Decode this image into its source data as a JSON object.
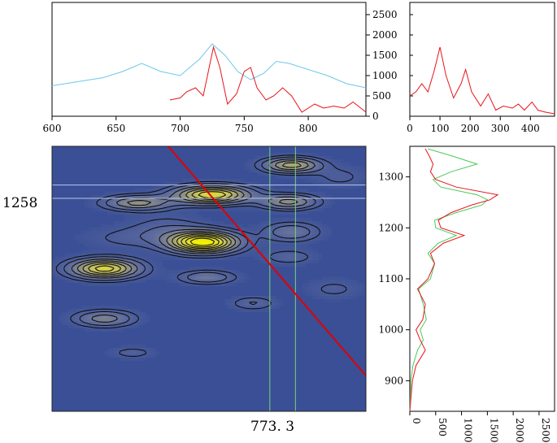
{
  "chart_data": {
    "type": "contour",
    "title": "",
    "cursor_labels": {
      "x": "773. 3",
      "y": "1258"
    },
    "colors": {
      "spectrum_blue": "#6cc8e8",
      "spectrum_red": "#e8141a",
      "trace_green": "#4cc85a",
      "map_background": "#3a4f96",
      "contour_line": "#111111",
      "cursor_line": "#7ad27a",
      "diagonal": "#e00000",
      "peak_yellow": "#f4f000"
    },
    "top_panel": {
      "xlim": [
        600,
        845
      ],
      "ylim": [
        0,
        2800
      ],
      "x_ticks": [
        "600",
        "650",
        "700",
        "750",
        "800"
      ],
      "y_ticks": [
        "0",
        "500",
        "1000",
        "1500",
        "2000",
        "2500"
      ],
      "series": [
        {
          "name": "blue spectrum",
          "x": [
            600,
            620,
            640,
            655,
            670,
            685,
            700,
            715,
            725,
            735,
            745,
            755,
            765,
            775,
            785,
            800,
            815,
            830,
            845
          ],
          "y": [
            750,
            850,
            950,
            1100,
            1300,
            1100,
            1000,
            1400,
            1780,
            1500,
            1100,
            900,
            1050,
            1350,
            1300,
            1150,
            1000,
            800,
            700
          ]
        },
        {
          "name": "red spectrum",
          "x": [
            692,
            700,
            705,
            712,
            718,
            722,
            726,
            731,
            737,
            744,
            750,
            755,
            760,
            767,
            773,
            780,
            787,
            795,
            805,
            812,
            820,
            828,
            835,
            845
          ],
          "y": [
            400,
            450,
            600,
            700,
            500,
            1100,
            1700,
            1200,
            300,
            550,
            1100,
            1200,
            700,
            400,
            500,
            700,
            500,
            100,
            300,
            200,
            250,
            200,
            350,
            100
          ]
        }
      ]
    },
    "side_top_panel": {
      "xlim": [
        0,
        480
      ],
      "ylim": [
        0,
        2800
      ],
      "x_ticks": [
        "0",
        "100",
        "200",
        "300",
        "400"
      ],
      "series": [
        {
          "name": "red spectrum",
          "x": [
            0,
            20,
            40,
            60,
            80,
            100,
            120,
            145,
            170,
            185,
            205,
            235,
            260,
            285,
            310,
            340,
            360,
            380,
            405,
            425,
            450,
            480
          ],
          "y": [
            500,
            600,
            800,
            600,
            1100,
            1700,
            1000,
            450,
            800,
            1150,
            600,
            250,
            550,
            150,
            250,
            200,
            300,
            150,
            350,
            150,
            100,
            60
          ]
        }
      ]
    },
    "right_panel": {
      "xlim": [
        0,
        2800
      ],
      "ylim": [
        840,
        1360
      ],
      "x_ticks": [
        "0",
        "500",
        "1000",
        "1500",
        "2000",
        "2500"
      ],
      "y_ticks": [
        "900",
        "1000",
        "1100",
        "1200",
        "1300"
      ],
      "series": [
        {
          "name": "green trace",
          "y": [
            840,
            900,
            930,
            960,
            980,
            1000,
            1020,
            1050,
            1080,
            1100,
            1130,
            1150,
            1170,
            1185,
            1200,
            1215,
            1230,
            1245,
            1255,
            1265,
            1280,
            1295,
            1310,
            1325,
            1340,
            1355
          ],
          "x": [
            0,
            20,
            60,
            150,
            260,
            200,
            320,
            260,
            170,
            400,
            480,
            350,
            550,
            900,
            500,
            480,
            900,
            1400,
            1500,
            1300,
            600,
            450,
            800,
            1300,
            850,
            350
          ]
        },
        {
          "name": "red trace",
          "y": [
            840,
            900,
            930,
            960,
            980,
            1000,
            1020,
            1050,
            1080,
            1100,
            1130,
            1150,
            1170,
            1185,
            1200,
            1215,
            1230,
            1245,
            1255,
            1265,
            1280,
            1295,
            1310,
            1325,
            1340,
            1355
          ],
          "x": [
            0,
            50,
            120,
            300,
            200,
            120,
            250,
            300,
            150,
            350,
            480,
            400,
            650,
            1050,
            600,
            550,
            800,
            1200,
            1550,
            1700,
            900,
            500,
            400,
            450,
            380,
            300
          ]
        }
      ]
    },
    "contour_map": {
      "xlim": [
        600,
        845
      ],
      "ylim": [
        840,
        1360
      ],
      "cursor_x": [
        770,
        790
      ],
      "cursor_y": [
        1258,
        1284
      ],
      "diagonal": [
        [
          690,
          1362
        ],
        [
          845,
          910
        ]
      ],
      "peaks": [
        {
          "x": 718,
          "y": 1172,
          "amp": 2400,
          "sx": 18,
          "sy": 14
        },
        {
          "x": 641,
          "y": 1120,
          "amp": 1800,
          "sx": 18,
          "sy": 13
        },
        {
          "x": 725,
          "y": 1265,
          "amp": 1900,
          "sx": 20,
          "sy": 12
        },
        {
          "x": 787,
          "y": 1323,
          "amp": 1300,
          "sx": 15,
          "sy": 10
        },
        {
          "x": 667,
          "y": 1249,
          "amp": 1000,
          "sx": 18,
          "sy": 10
        },
        {
          "x": 785,
          "y": 1251,
          "amp": 1000,
          "sx": 15,
          "sy": 10
        },
        {
          "x": 641,
          "y": 1022,
          "amp": 800,
          "sx": 16,
          "sy": 11
        },
        {
          "x": 721,
          "y": 1103,
          "amp": 650,
          "sx": 15,
          "sy": 9
        },
        {
          "x": 787,
          "y": 1192,
          "amp": 600,
          "sx": 15,
          "sy": 13
        },
        {
          "x": 757,
          "y": 1052,
          "amp": 400,
          "sx": 12,
          "sy": 9
        },
        {
          "x": 785,
          "y": 1143,
          "amp": 350,
          "sx": 14,
          "sy": 10
        },
        {
          "x": 663,
          "y": 955,
          "amp": 300,
          "sx": 12,
          "sy": 8
        },
        {
          "x": 820,
          "y": 1080,
          "amp": 250,
          "sx": 15,
          "sy": 14
        },
        {
          "x": 690,
          "y": 1200,
          "amp": 300,
          "sx": 20,
          "sy": 18
        },
        {
          "x": 660,
          "y": 1180,
          "amp": 250,
          "sx": 25,
          "sy": 15
        },
        {
          "x": 825,
          "y": 1300,
          "amp": 250,
          "sx": 15,
          "sy": 15
        }
      ],
      "levels": [
        200,
        380,
        650,
        900,
        1150,
        1400,
        1650,
        1900,
        2150
      ]
    }
  }
}
